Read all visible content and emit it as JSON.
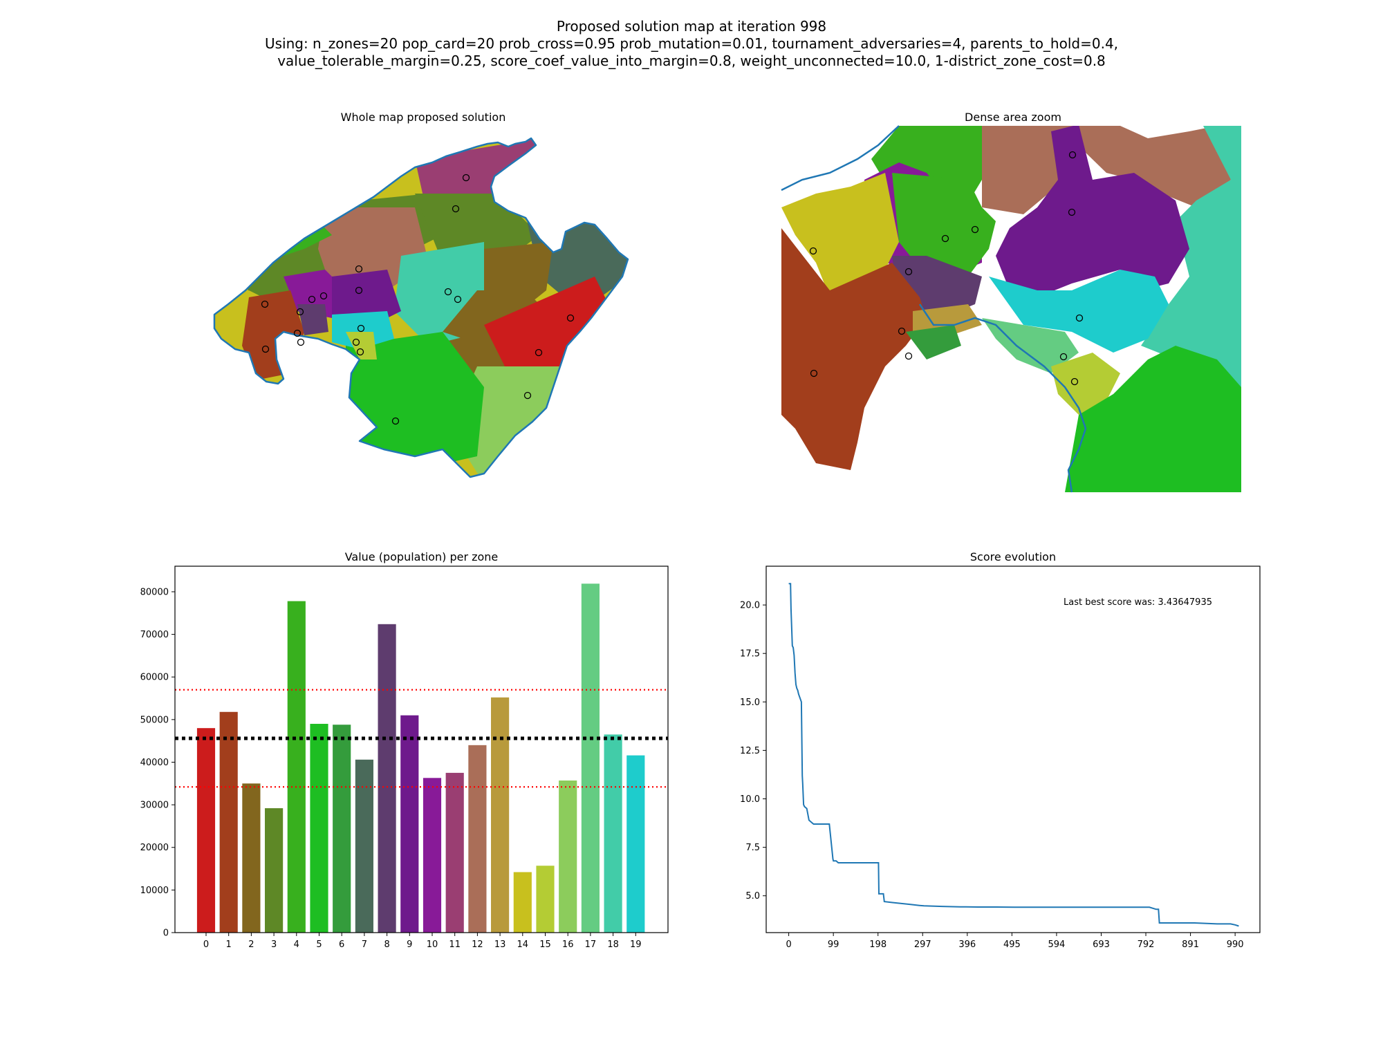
{
  "figure": {
    "title_line1": "Proposed solution map at iteration 998",
    "title_line2": "Using: n_zones=20 pop_card=20 prob_cross=0.95 prob_mutation=0.01, tournament_adversaries=4, parents_to_hold=0.4,",
    "title_line3": "value_tolerable_margin=0.25, score_coef_value_into_margin=0.8, weight_unconnected=10.0, 1-district_zone_cost=0.8"
  },
  "maps": {
    "whole_title": "Whole map proposed solution",
    "zoom_title": "Dense area zoom",
    "coast_color": "#1f77b4"
  },
  "chart_data": [
    {
      "type": "bar",
      "title": "Value (population) per zone",
      "xlabel": "",
      "ylabel": "",
      "categories": [
        "0",
        "1",
        "2",
        "3",
        "4",
        "5",
        "6",
        "7",
        "8",
        "9",
        "10",
        "11",
        "12",
        "13",
        "14",
        "15",
        "16",
        "17",
        "18",
        "19"
      ],
      "values": [
        48000,
        51800,
        35000,
        29200,
        77800,
        49000,
        48800,
        40600,
        72400,
        51000,
        36300,
        37500,
        44000,
        55200,
        14200,
        15700,
        35700,
        81900,
        46500,
        41600
      ],
      "colors": [
        "#cc1c1c",
        "#a23e1c",
        "#82661e",
        "#5e8826",
        "#38b01e",
        "#1ebe22",
        "#349c3c",
        "#4a6a5a",
        "#5e3c6e",
        "#6e1a8c",
        "#881a98",
        "#9a3e72",
        "#aa6e58",
        "#b89a3c",
        "#c8c01e",
        "#b4cc34",
        "#8ccc5c",
        "#64cc82",
        "#42cca8",
        "#1ecccc"
      ],
      "ylim": [
        0,
        86000
      ],
      "yticks": [
        0,
        10000,
        20000,
        30000,
        40000,
        50000,
        60000,
        70000,
        80000
      ],
      "reference_lines": [
        {
          "value": 45600,
          "color": "#000000",
          "style": "dotted"
        },
        {
          "value": 57000,
          "color": "#ff0000",
          "style": "dotted"
        },
        {
          "value": 34200,
          "color": "#ff0000",
          "style": "dotted"
        }
      ]
    },
    {
      "type": "line",
      "title": "Score evolution",
      "xlabel": "",
      "ylabel": "",
      "xticks": [
        0,
        99,
        198,
        297,
        396,
        495,
        594,
        693,
        792,
        891,
        990
      ],
      "yticks": [
        5.0,
        7.5,
        10.0,
        12.5,
        15.0,
        17.5,
        20.0
      ],
      "xlim": [
        -50,
        1045
      ],
      "ylim": [
        3.1,
        22.0
      ],
      "annotation": "Last best score was: 3.43647935",
      "color": "#1f77b4",
      "x": [
        0,
        4,
        5,
        8,
        10,
        12,
        14,
        16,
        18,
        20,
        22,
        25,
        28,
        30,
        31,
        33,
        35,
        40,
        45,
        50,
        55,
        60,
        70,
        80,
        90,
        98,
        99,
        105,
        110,
        130,
        150,
        160,
        170,
        180,
        190,
        199,
        200,
        210,
        212,
        230,
        250,
        270,
        290,
        300,
        340,
        380,
        420,
        460,
        500,
        560,
        620,
        680,
        740,
        800,
        815,
        820,
        822,
        850,
        880,
        900,
        950,
        980,
        990,
        998
      ],
      "y": [
        21.1,
        21.1,
        19.8,
        17.9,
        17.8,
        17.4,
        16.5,
        15.9,
        15.7,
        15.6,
        15.4,
        15.2,
        15.0,
        11.2,
        10.8,
        9.7,
        9.6,
        9.5,
        8.9,
        8.8,
        8.7,
        8.7,
        8.7,
        8.7,
        8.7,
        6.9,
        6.8,
        6.8,
        6.7,
        6.7,
        6.7,
        6.7,
        6.7,
        6.7,
        6.7,
        6.7,
        5.1,
        5.1,
        4.7,
        4.65,
        4.6,
        4.55,
        4.5,
        4.48,
        4.45,
        4.43,
        4.42,
        4.42,
        4.41,
        4.41,
        4.41,
        4.41,
        4.41,
        4.41,
        4.3,
        4.3,
        3.6,
        3.6,
        3.6,
        3.6,
        3.55,
        3.55,
        3.5,
        3.44
      ]
    }
  ]
}
